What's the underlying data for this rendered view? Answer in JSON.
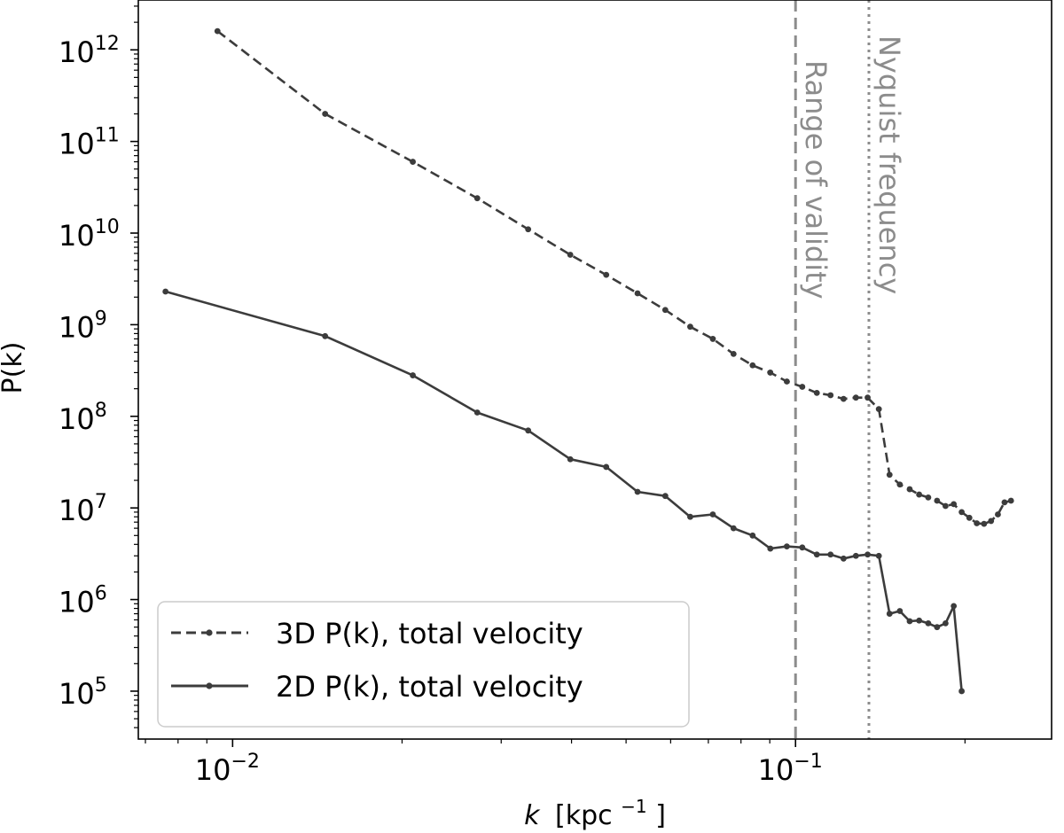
{
  "chart_data": {
    "type": "line",
    "xscale": "log",
    "yscale": "log",
    "xlim": [
      0.0068,
      0.285
    ],
    "ylim": [
      30000,
      3500000000000.0
    ],
    "xlabel": "k [kpc⁻¹]",
    "xlabel_italic": "k",
    "xlabel_rest": "[kpc",
    "xlabel_exp": "−1",
    "xlabel_close": "]",
    "ylabel": "P(k)",
    "x_ticks": [
      {
        "value": 0.01,
        "base": "10",
        "exp": "−2"
      },
      {
        "value": 0.1,
        "base": "10",
        "exp": "−1"
      }
    ],
    "y_ticks": [
      {
        "value": 100000,
        "base": "10",
        "exp": "5"
      },
      {
        "value": 1000000,
        "base": "10",
        "exp": "6"
      },
      {
        "value": 10000000,
        "base": "10",
        "exp": "7"
      },
      {
        "value": 100000000,
        "base": "10",
        "exp": "8"
      },
      {
        "value": 1000000000,
        "base": "10",
        "exp": "9"
      },
      {
        "value": 10000000000,
        "base": "10",
        "exp": "10"
      },
      {
        "value": 100000000000,
        "base": "10",
        "exp": "11"
      },
      {
        "value": 1000000000000,
        "base": "10",
        "exp": "12"
      }
    ],
    "series": [
      {
        "name": "3D P(k), total velocity",
        "style": "dashed",
        "color": "#3c3c3c",
        "x": [
          0.0094,
          0.0146,
          0.0209,
          0.0272,
          0.0335,
          0.0398,
          0.0461,
          0.0524,
          0.0587,
          0.065,
          0.0713,
          0.0776,
          0.0839,
          0.0902,
          0.0965,
          0.1028,
          0.1091,
          0.1154,
          0.1217,
          0.128,
          0.1343,
          0.1406,
          0.1469,
          0.1532,
          0.1595,
          0.1658,
          0.1721,
          0.1784,
          0.1847,
          0.191,
          0.1973,
          0.2036,
          0.2099,
          0.2162,
          0.2225,
          0.2288,
          0.2351,
          0.2414
        ],
        "y": [
          1600000000000.0,
          200000000000.0,
          60000000000.0,
          24000000000.0,
          11000000000.0,
          5800000000.0,
          3500000000.0,
          2200000000.0,
          1450000000.0,
          950000000.0,
          700000000.0,
          480000000.0,
          360000000.0,
          300000000.0,
          240000000.0,
          210000000.0,
          180000000.0,
          170000000.0,
          155000000.0,
          160000000.0,
          160000000.0,
          120000000.0,
          23000000.0,
          18000000.0,
          16000000.0,
          14000000.0,
          13000000.0,
          12000000.0,
          10500000.0,
          11000000.0,
          9000000.0,
          7800000.0,
          6800000.0,
          6700000.0,
          7200000.0,
          8500000.0,
          11500000.0,
          12000000.0
        ]
      },
      {
        "name": "2D P(k), total velocity",
        "style": "solid",
        "color": "#3c3c3c",
        "x": [
          0.0076,
          0.0146,
          0.0209,
          0.0272,
          0.0335,
          0.0398,
          0.0461,
          0.0524,
          0.0587,
          0.065,
          0.0713,
          0.0776,
          0.0839,
          0.0902,
          0.0965,
          0.1028,
          0.1091,
          0.1154,
          0.1217,
          0.128,
          0.1343,
          0.1406,
          0.1469,
          0.1532,
          0.1595,
          0.1658,
          0.1721,
          0.1784,
          0.1847,
          0.191,
          0.1973
        ],
        "y": [
          2300000000.0,
          750000000.0,
          280000000.0,
          110000000.0,
          70000000.0,
          34000000.0,
          28000000.0,
          15000000.0,
          13500000.0,
          8000000.0,
          8500000.0,
          6000000.0,
          5000000.0,
          3600000.0,
          3800000.0,
          3700000.0,
          3100000.0,
          3100000.0,
          2800000.0,
          3000000.0,
          3100000.0,
          3000000.0,
          700000.0,
          750000.0,
          580000.0,
          590000.0,
          550000.0,
          500000.0,
          550000.0,
          850000.0,
          100000.0
        ]
      }
    ],
    "vlines": [
      {
        "x": 0.1,
        "style": "dashed",
        "color": "#8c8c8c",
        "label": "Range of validity"
      },
      {
        "x": 0.135,
        "style": "dotted",
        "color": "#8c8c8c",
        "label": "Nyquist frequency"
      }
    ],
    "legend": {
      "position": "lower-left",
      "entries": [
        "3D P(k), total velocity",
        "2D P(k), total velocity"
      ]
    }
  }
}
